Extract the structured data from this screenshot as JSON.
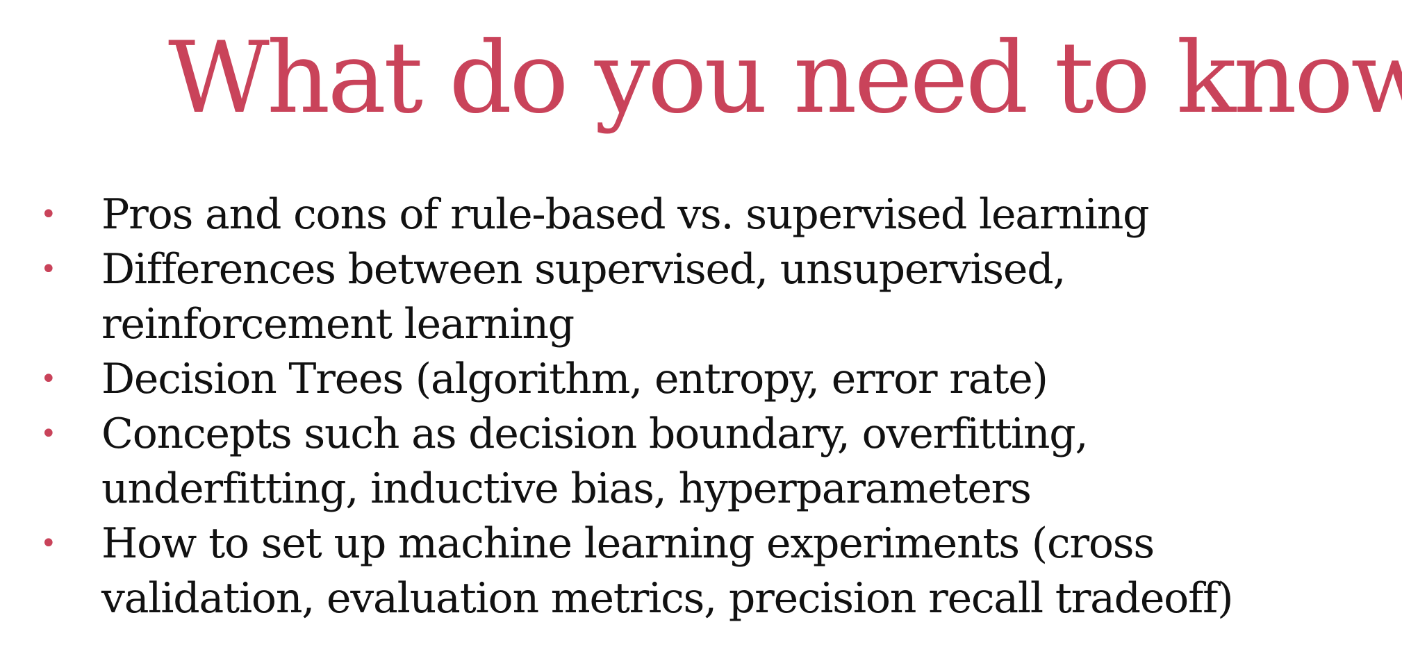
{
  "slide": {
    "title": "What do you need to know",
    "bullet_symbol": "•",
    "bullets": [
      {
        "lines": [
          "Pros and cons of rule-based vs. supervised learning"
        ]
      },
      {
        "lines": [
          "Differences between supervised, unsupervised,",
          "reinforcement learning"
        ]
      },
      {
        "lines": [
          "Decision Trees (algorithm, entropy, error rate)"
        ]
      },
      {
        "lines": [
          "Concepts such as decision boundary, overfitting,",
          "underfitting, inductive bias, hyperparameters"
        ]
      },
      {
        "lines": [
          "How to set up machine learning experiments (cross",
          "validation, evaluation metrics, precision recall tradeoff)"
        ]
      }
    ]
  },
  "colors": {
    "accent": "#c9435a",
    "text": "#111111",
    "background": "#ffffff"
  }
}
